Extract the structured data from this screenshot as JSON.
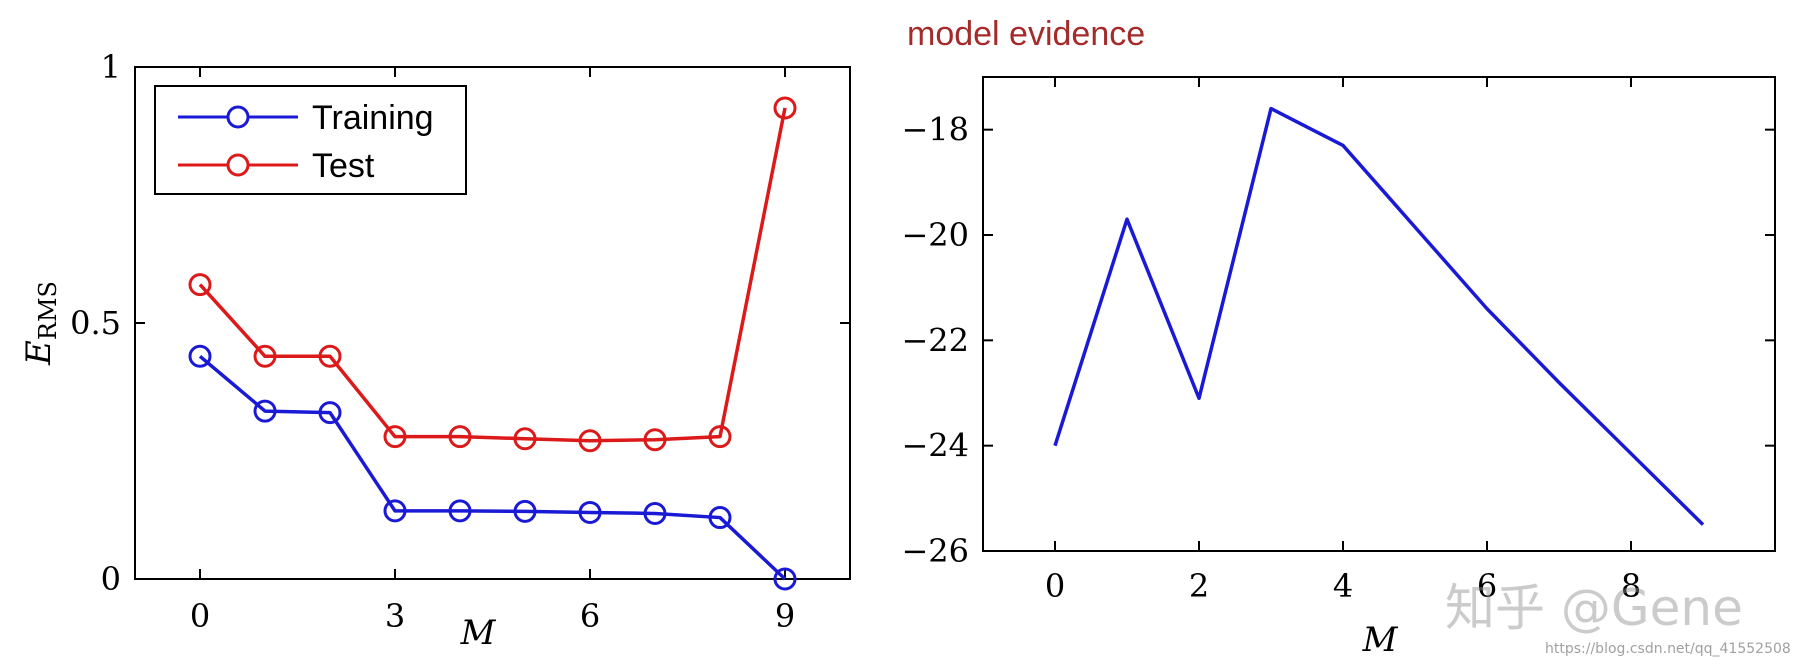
{
  "chart_data": [
    {
      "type": "line",
      "title": "",
      "xlabel": "M",
      "ylabel_main": "E",
      "ylabel_sub": "RMS",
      "xlim": [
        -1,
        10
      ],
      "ylim": [
        0,
        1
      ],
      "xticks": [
        0,
        3,
        6,
        9
      ],
      "xtick_labels": [
        "0",
        "3",
        "6",
        "9"
      ],
      "yticks": [
        0,
        0.5,
        1
      ],
      "ytick_labels": [
        "0",
        "0.5",
        "1"
      ],
      "x": [
        0,
        1,
        2,
        3,
        4,
        5,
        6,
        7,
        8,
        9
      ],
      "series": [
        {
          "name": "Training",
          "color": "#1a1ad6",
          "marker": "circle",
          "values": [
            0.435,
            0.328,
            0.325,
            0.133,
            0.133,
            0.132,
            0.13,
            0.128,
            0.12,
            0.0
          ]
        },
        {
          "name": "Test",
          "color": "#dc1a1a",
          "marker": "circle",
          "values": [
            0.575,
            0.435,
            0.435,
            0.278,
            0.278,
            0.274,
            0.27,
            0.272,
            0.278,
            0.92
          ]
        }
      ],
      "legend_position": "top-left",
      "grid": false
    },
    {
      "type": "line",
      "title": "model evidence",
      "title_color": "#a52a2a",
      "xlabel": "M",
      "ylabel": "",
      "xlim": [
        -1,
        10
      ],
      "ylim": [
        -26,
        -17
      ],
      "xticks": [
        0,
        2,
        4,
        6,
        8
      ],
      "xtick_labels": [
        "0",
        "2",
        "4",
        "6",
        "8"
      ],
      "yticks": [
        -18,
        -20,
        -22,
        -24,
        -26
      ],
      "ytick_labels": [
        "−18",
        "−20",
        "−22",
        "−24",
        "−26"
      ],
      "x": [
        0,
        1,
        2,
        3,
        4,
        5,
        6,
        7,
        8,
        9
      ],
      "series": [
        {
          "color": "#1a1ad6",
          "values": [
            -24.0,
            -19.7,
            -23.1,
            -17.6,
            -18.3,
            -19.85,
            -21.4,
            -22.8,
            -24.15,
            -25.5
          ]
        }
      ],
      "grid": false
    }
  ],
  "watermark": {
    "main": "知乎 @Gene",
    "url": "https://blog.csdn.net/qq_41552508"
  }
}
